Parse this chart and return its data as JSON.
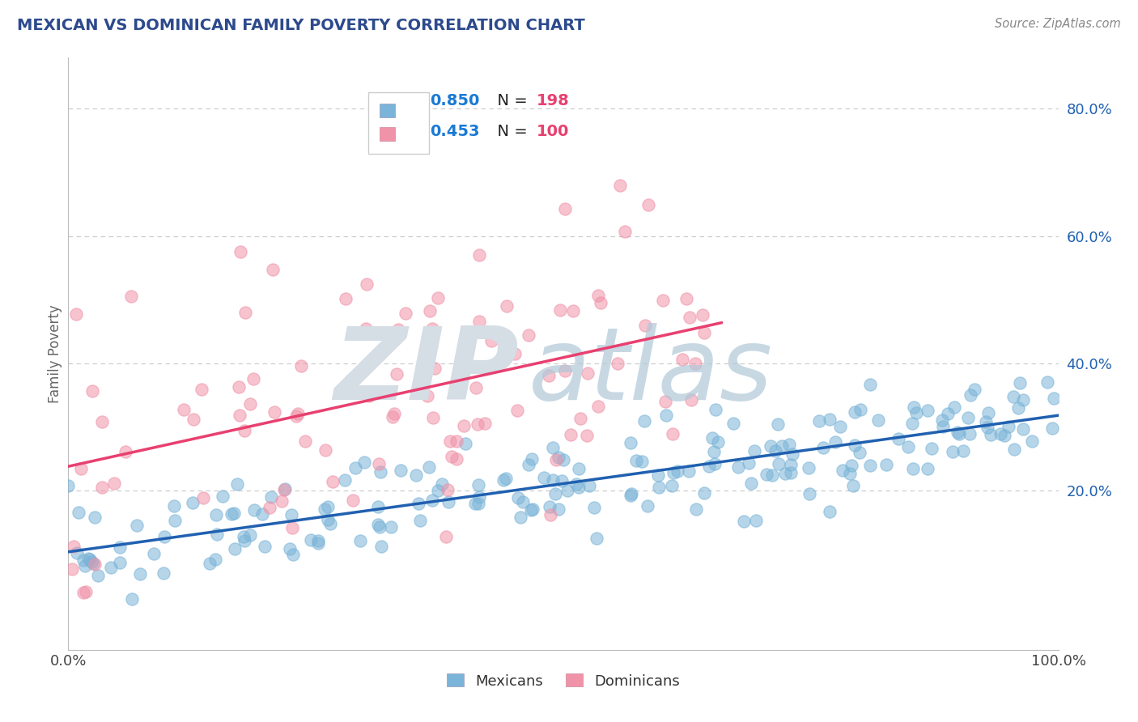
{
  "title": "MEXICAN VS DOMINICAN FAMILY POVERTY CORRELATION CHART",
  "source_text": "Source: ZipAtlas.com",
  "ylabel": "Family Poverty",
  "blue_R": 0.85,
  "blue_N": 198,
  "pink_R": 0.453,
  "pink_N": 100,
  "blue_color": "#7ab4d8",
  "pink_color": "#f093a8",
  "blue_line_color": "#2060b0",
  "pink_line_color": "#e84070",
  "title_color": "#2c4a8c",
  "legend_r_color": "#1a7ad4",
  "legend_n_color": "#e84070",
  "background_color": "#ffffff",
  "grid_color": "#c8c8c8",
  "xlim": [
    0,
    1.0
  ],
  "ylim": [
    -0.05,
    0.88
  ],
  "yticks_right": [
    0.2,
    0.4,
    0.6,
    0.8
  ],
  "yticklabels_right": [
    "20.0%",
    "40.0%",
    "60.0%",
    "80.0%"
  ],
  "legend_labels": [
    "Mexicans",
    "Dominicans"
  ],
  "watermark_zip_color": "#d5dde5",
  "watermark_atlas_color": "#b0c8d8"
}
